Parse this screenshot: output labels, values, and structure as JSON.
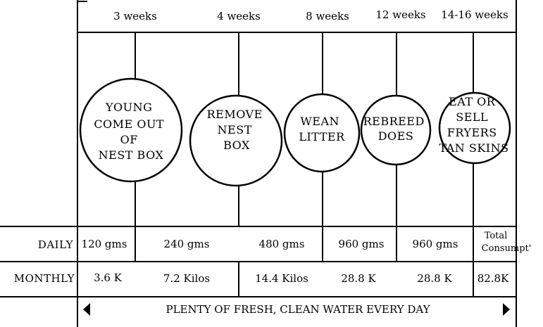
{
  "colors": {
    "ink": "#000000",
    "paper": "#ffffff"
  },
  "header": {
    "weeks": [
      "3 weeks",
      "4 weeks",
      "8 weeks",
      "12 weeks",
      "14-16 weeks"
    ]
  },
  "stages": [
    {
      "lines": [
        "YOUNG",
        "COME OUT",
        "OF",
        "NEST BOX"
      ]
    },
    {
      "lines": [
        "REMOVE",
        "NEST",
        "BOX"
      ]
    },
    {
      "lines": [
        "WEAN",
        "LITTER"
      ]
    },
    {
      "lines": [
        "REBREED",
        "DOES"
      ]
    },
    {
      "lines": [
        "EAT OR",
        "SELL",
        "FRYERS",
        "TAN SKINS"
      ]
    }
  ],
  "table": {
    "daily_label": "DAILY",
    "monthly_label": "MONTHLY",
    "daily": [
      "120 gms",
      "240 gms",
      "480 gms",
      "960 gms",
      "960 gms"
    ],
    "monthly": [
      "3.6 K",
      "7.2 Kilos",
      "14.4 Kilos",
      "28.8 K",
      "28.8 K"
    ],
    "total_label_line1": "Total",
    "total_label_line2": "Consumpt'",
    "total_value": "82.8K"
  },
  "footer": {
    "text": "PLENTY OF FRESH, CLEAN WATER EVERY DAY",
    "left_arrow_icon": "arrow-left-icon",
    "right_arrow_icon": "arrow-right-icon"
  }
}
